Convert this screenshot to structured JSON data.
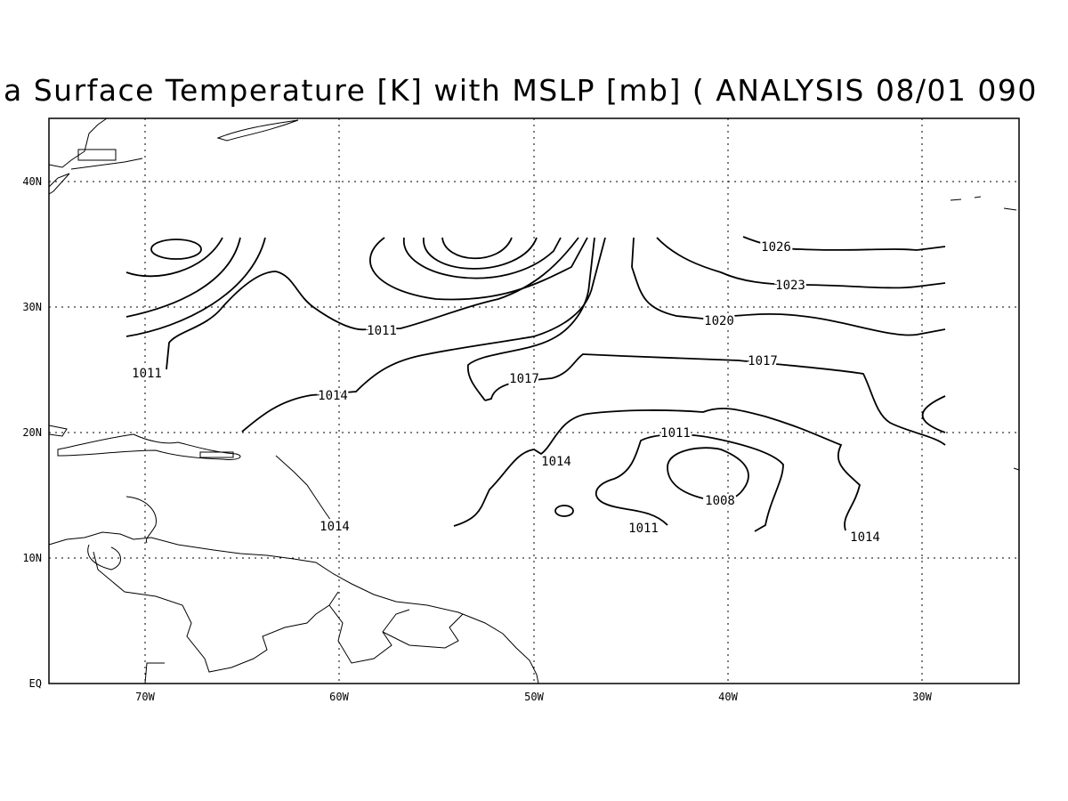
{
  "title": "a Surface Temperature [K] with MSLP [mb] ( ANALYSIS 08/01 090",
  "axes": {
    "x_labels": [
      "70W",
      "60W",
      "50W",
      "40W",
      "30W"
    ],
    "y_labels": [
      "EQ",
      "10N",
      "20N",
      "30N",
      "40N"
    ]
  },
  "contour_labels": [
    "1026",
    "1023",
    "1020",
    "1017",
    "1017",
    "1011",
    "1011",
    "1014",
    "1014",
    "1014",
    "1011",
    "1008",
    "1011",
    "1014"
  ]
}
